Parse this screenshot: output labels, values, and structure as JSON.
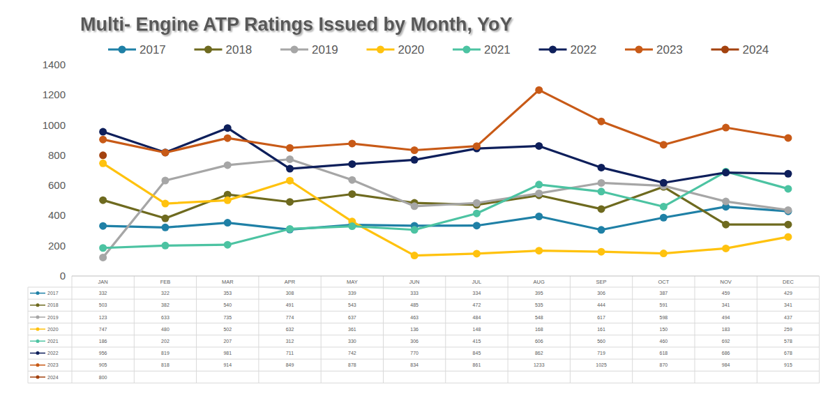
{
  "chart_data": {
    "type": "line",
    "title": "Multi- Engine ATP Ratings Issued by Month, YoY",
    "categories": [
      "JAN",
      "FEB",
      "MAR",
      "APR",
      "MAY",
      "JUN",
      "JUL",
      "AUG",
      "SEP",
      "OCT",
      "NOV",
      "DEC"
    ],
    "series": [
      {
        "name": "2017",
        "color": "#1f80a6",
        "values": [
          332,
          322,
          353,
          308,
          339,
          333,
          334,
          395,
          306,
          387,
          459,
          429
        ]
      },
      {
        "name": "2018",
        "color": "#6e6a1f",
        "values": [
          503,
          382,
          540,
          491,
          543,
          485,
          472,
          535,
          444,
          591,
          341,
          341
        ]
      },
      {
        "name": "2019",
        "color": "#a6a6a6",
        "values": [
          123,
          633,
          735,
          774,
          637,
          463,
          484,
          548,
          617,
          598,
          494,
          437
        ]
      },
      {
        "name": "2020",
        "color": "#ffc20e",
        "values": [
          747,
          480,
          502,
          632,
          361,
          136,
          148,
          168,
          161,
          150,
          183,
          259
        ]
      },
      {
        "name": "2021",
        "color": "#4cc3a2",
        "values": [
          186,
          202,
          207,
          312,
          330,
          306,
          415,
          606,
          560,
          460,
          692,
          578
        ]
      },
      {
        "name": "2022",
        "color": "#0e1f5b",
        "values": [
          956,
          819,
          981,
          711,
          742,
          770,
          845,
          862,
          719,
          618,
          686,
          678
        ]
      },
      {
        "name": "2023",
        "color": "#c85a17",
        "values": [
          905,
          818,
          914,
          849,
          878,
          834,
          861,
          1233,
          1025,
          870,
          984,
          915
        ]
      },
      {
        "name": "2024",
        "color": "#a3420f",
        "values": [
          800,
          null,
          null,
          null,
          null,
          null,
          null,
          null,
          null,
          null,
          null,
          null
        ]
      }
    ],
    "ylim": [
      0,
      1400
    ],
    "yticks": [
      0,
      200,
      400,
      600,
      800,
      1000,
      1200,
      1400
    ],
    "grid": false,
    "legend": "top",
    "marker": "circle",
    "line_style": "solid",
    "data_labels": false
  }
}
